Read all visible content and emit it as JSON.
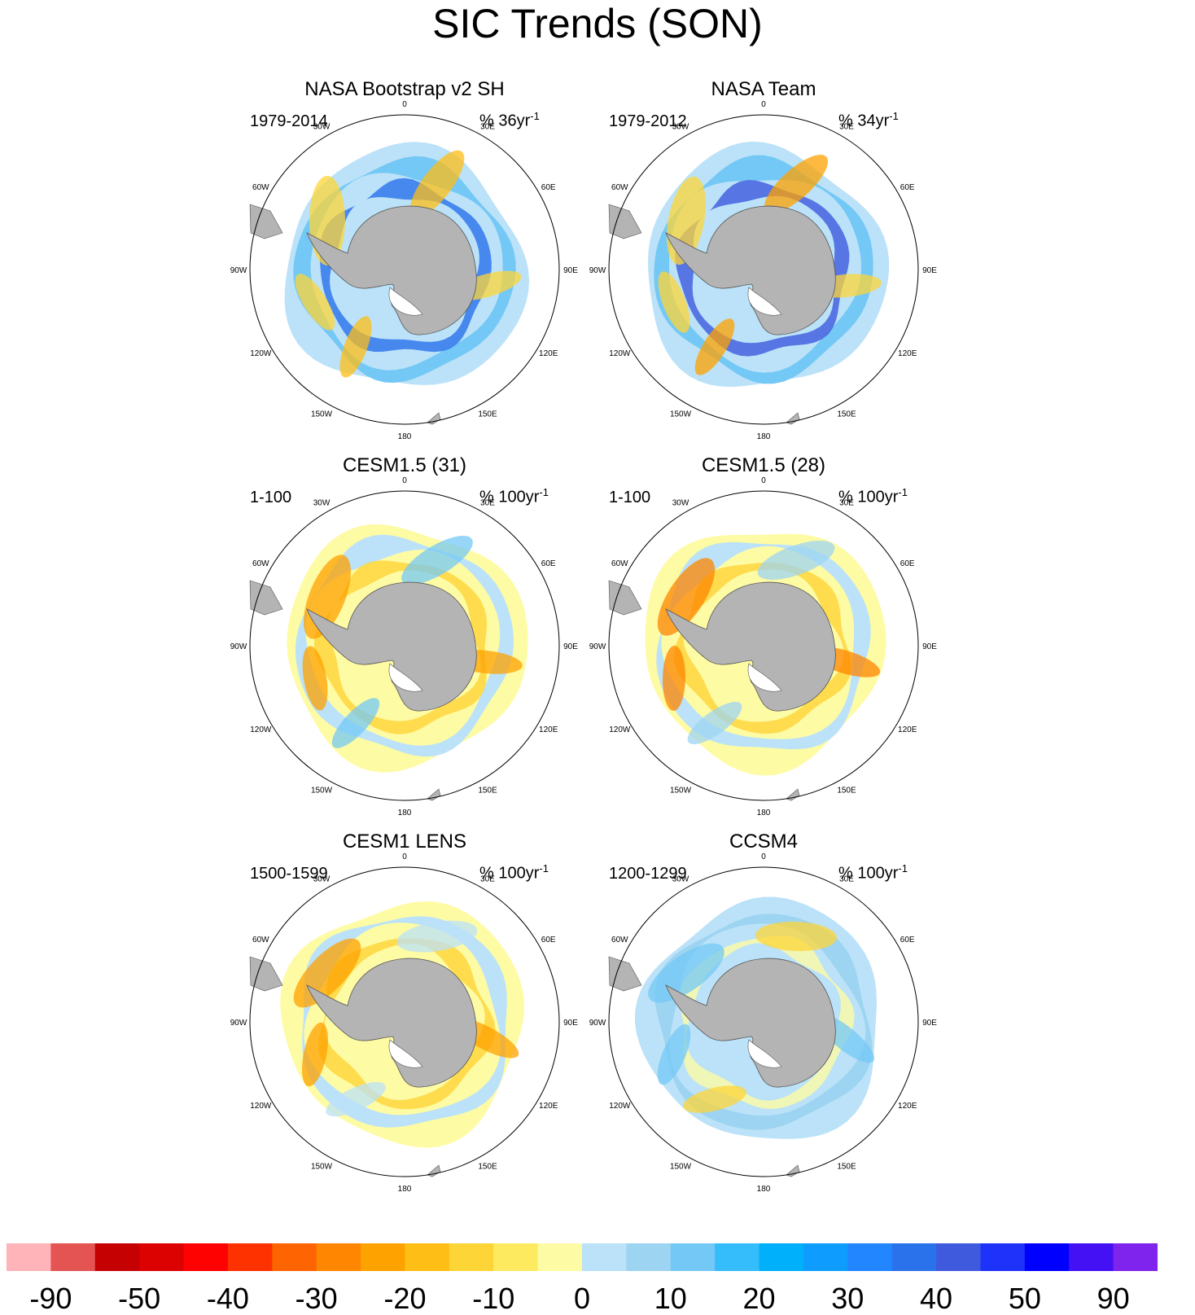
{
  "title": "SIC Trends (SON)",
  "panels": [
    {
      "title": "NASA Bootstrap v2 SH",
      "period": "1979-2014",
      "units": "% 36yr",
      "units_exp": "-1",
      "style": "obs1"
    },
    {
      "title": "NASA Team",
      "period": "1979-2012",
      "units": "% 34yr",
      "units_exp": "-1",
      "style": "obs2"
    },
    {
      "title": "CESM1.5 (31)",
      "period": "1-100",
      "units": "% 100yr",
      "units_exp": "-1",
      "style": "mod1"
    },
    {
      "title": "CESM1.5 (28)",
      "period": "1-100",
      "units": "% 100yr",
      "units_exp": "-1",
      "style": "mod2"
    },
    {
      "title": "CESM1 LENS",
      "period": "1500-1599",
      "units": "% 100yr",
      "units_exp": "-1",
      "style": "mod3"
    },
    {
      "title": "CCSM4",
      "period": "1200-1299",
      "units": "% 100yr",
      "units_exp": "-1",
      "style": "mod4"
    }
  ],
  "longitude_labels": [
    "0",
    "30E",
    "60E",
    "90E",
    "120E",
    "150E",
    "180",
    "150W",
    "120W",
    "90W",
    "60W",
    "30W"
  ],
  "colorbar": {
    "colors": [
      "#feb4b9",
      "#e45452",
      "#c50101",
      "#dc0201",
      "#fd0201",
      "#fe3201",
      "#fe6401",
      "#fe8600",
      "#fea200",
      "#febe16",
      "#fed537",
      "#feea5f",
      "#fefba5",
      "#bbe2f8",
      "#9dd4f1",
      "#74c8f5",
      "#35bcfb",
      "#00b0fa",
      "#0f9cff",
      "#2186ff",
      "#2a72ec",
      "#3f5add",
      "#1e32fa",
      "#0000fe",
      "#4311f4",
      "#7f24ec"
    ],
    "tick_labels": [
      "-90",
      "-50",
      "-40",
      "-30",
      "-20",
      "-10",
      "0",
      "10",
      "20",
      "30",
      "40",
      "50",
      "90"
    ]
  }
}
